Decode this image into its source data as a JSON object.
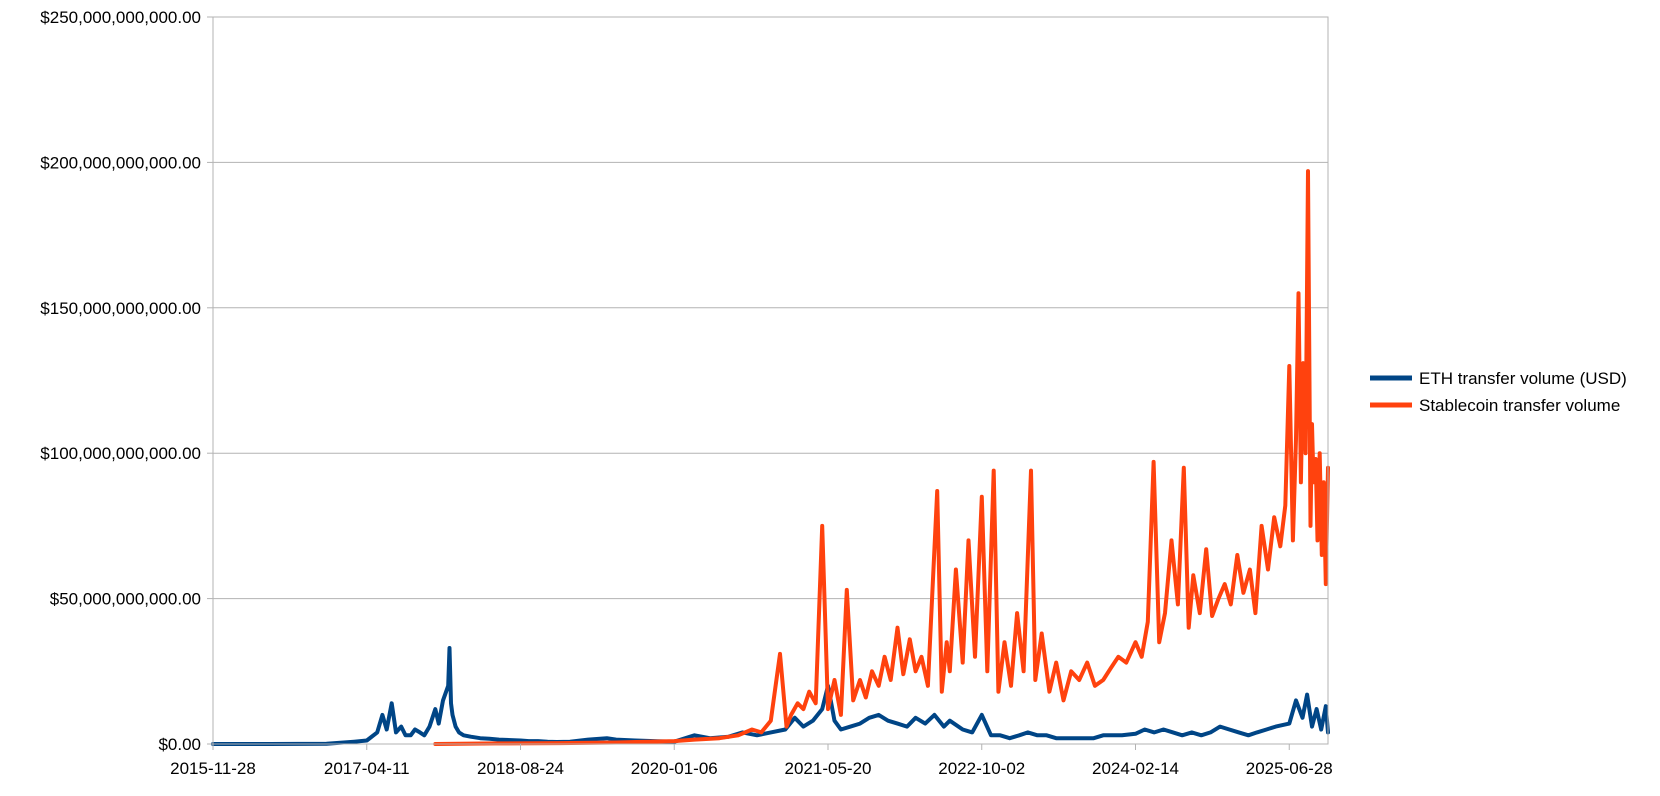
{
  "chart_data": {
    "type": "line",
    "title": "",
    "xlabel": "",
    "ylabel": "",
    "x_start": "2015-11-28",
    "x_end": "2025-11-01",
    "x_ticks": [
      "2015-11-28",
      "2017-04-11",
      "2018-08-24",
      "2020-01-06",
      "2021-05-20",
      "2022-10-02",
      "2024-02-14",
      "2025-06-28"
    ],
    "ylim": [
      0,
      250000000000
    ],
    "y_ticks": [
      {
        "value": 0,
        "label": "$0.00"
      },
      {
        "value": 50000000000,
        "label": "$50,000,000,000.00"
      },
      {
        "value": 100000000000,
        "label": "$100,000,000,000.00"
      },
      {
        "value": 150000000000,
        "label": "$150,000,000,000.00"
      },
      {
        "value": 200000000000,
        "label": "$200,000,000,000.00"
      },
      {
        "value": 250000000000,
        "label": "$250,000,000,000.00"
      }
    ],
    "grid": true,
    "legend_position": "right",
    "series": [
      {
        "name": "ETH transfer volume (USD)",
        "color": "#004586",
        "x": [
          "2015-11-28",
          "2016-06-01",
          "2016-12-01",
          "2017-03-01",
          "2017-04-11",
          "2017-05-15",
          "2017-06-01",
          "2017-06-15",
          "2017-07-01",
          "2017-07-15",
          "2017-08-01",
          "2017-08-15",
          "2017-09-01",
          "2017-09-15",
          "2017-10-01",
          "2017-10-15",
          "2017-11-01",
          "2017-11-20",
          "2017-12-01",
          "2017-12-15",
          "2018-01-01",
          "2018-01-05",
          "2018-01-10",
          "2018-01-15",
          "2018-01-25",
          "2018-02-05",
          "2018-02-20",
          "2018-03-15",
          "2018-04-15",
          "2018-05-15",
          "2018-06-15",
          "2018-08-24",
          "2018-09-20",
          "2018-10-20",
          "2018-11-20",
          "2018-12-20",
          "2019-02-01",
          "2019-04-01",
          "2019-06-01",
          "2019-07-01",
          "2019-09-01",
          "2019-11-01",
          "2020-01-06",
          "2020-03-12",
          "2020-05-01",
          "2020-07-01",
          "2020-08-15",
          "2020-10-01",
          "2020-11-15",
          "2021-01-01",
          "2021-02-01",
          "2021-03-01",
          "2021-04-01",
          "2021-05-01",
          "2021-05-20",
          "2021-06-10",
          "2021-07-01",
          "2021-08-01",
          "2021-09-01",
          "2021-10-01",
          "2021-11-01",
          "2021-12-01",
          "2022-01-01",
          "2022-02-01",
          "2022-03-01",
          "2022-04-01",
          "2022-05-01",
          "2022-06-01",
          "2022-06-20",
          "2022-08-01",
          "2022-09-01",
          "2022-10-02",
          "2022-11-01",
          "2022-12-01",
          "2023-01-01",
          "2023-02-01",
          "2023-03-01",
          "2023-04-01",
          "2023-05-01",
          "2023-06-01",
          "2023-07-01",
          "2023-08-01",
          "2023-09-01",
          "2023-10-01",
          "2023-11-01",
          "2023-12-01",
          "2024-01-01",
          "2024-02-14",
          "2024-03-15",
          "2024-04-15",
          "2024-05-15",
          "2024-06-15",
          "2024-07-15",
          "2024-08-15",
          "2024-09-15",
          "2024-10-15",
          "2024-11-15",
          "2024-12-15",
          "2025-01-15",
          "2025-02-15",
          "2025-03-15",
          "2025-04-15",
          "2025-05-15",
          "2025-06-28",
          "2025-07-20",
          "2025-08-10",
          "2025-08-25",
          "2025-09-10",
          "2025-09-25",
          "2025-10-10",
          "2025-10-25",
          "2025-11-01"
        ],
        "y": [
          0,
          0,
          100000000.0,
          800000000.0,
          1200000000.0,
          4000000000.0,
          10000000000.0,
          5000000000.0,
          14000000000.0,
          4000000000.0,
          6000000000.0,
          3000000000.0,
          3000000000.0,
          5000000000.0,
          4000000000.0,
          3000000000.0,
          6000000000.0,
          12000000000.0,
          7000000000.0,
          15000000000.0,
          20000000000.0,
          33000000000.0,
          14000000000.0,
          10000000000.0,
          6000000000.0,
          4000000000.0,
          3000000000.0,
          2500000000.0,
          2000000000.0,
          1800000000.0,
          1500000000.0,
          1200000000.0,
          1000000000.0,
          1000000000.0,
          800000000.0,
          700000000.0,
          800000000.0,
          1500000000.0,
          2000000000.0,
          1500000000.0,
          1200000000.0,
          1000000000.0,
          800000000.0,
          3000000000.0,
          2000000000.0,
          2500000000.0,
          4000000000.0,
          3000000000.0,
          4000000000.0,
          5000000000.0,
          9000000000.0,
          6000000000.0,
          8000000000.0,
          12000000000.0,
          20000000000.0,
          8000000000.0,
          5000000000.0,
          6000000000.0,
          7000000000.0,
          9000000000.0,
          10000000000.0,
          8000000000.0,
          7000000000.0,
          6000000000.0,
          9000000000.0,
          7000000000.0,
          10000000000.0,
          6000000000.0,
          8000000000.0,
          5000000000.0,
          4000000000.0,
          10000000000.0,
          3000000000.0,
          3000000000.0,
          2000000000.0,
          3000000000.0,
          4000000000.0,
          3000000000.0,
          3000000000.0,
          2000000000.0,
          2000000000.0,
          2000000000.0,
          2000000000.0,
          2000000000.0,
          3000000000.0,
          3000000000.0,
          3000000000.0,
          3500000000.0,
          5000000000.0,
          4000000000.0,
          5000000000.0,
          4000000000.0,
          3000000000.0,
          4000000000.0,
          3000000000.0,
          4000000000.0,
          6000000000.0,
          5000000000.0,
          4000000000.0,
          3000000000.0,
          4000000000.0,
          5000000000.0,
          6000000000.0,
          7000000000.0,
          15000000000.0,
          9000000000.0,
          17000000000.0,
          6000000000.0,
          12000000000.0,
          5000000000.0,
          13000000000.0,
          4000000000.0
        ]
      },
      {
        "name": "Stablecoin transfer volume",
        "color": "#ff420e",
        "x": [
          "2017-11-20",
          "2018-06-01",
          "2019-01-01",
          "2019-07-01",
          "2020-01-06",
          "2020-03-12",
          "2020-06-01",
          "2020-08-01",
          "2020-09-15",
          "2020-10-15",
          "2020-11-15",
          "2020-12-15",
          "2021-01-05",
          "2021-01-20",
          "2021-02-10",
          "2021-03-01",
          "2021-03-20",
          "2021-04-10",
          "2021-05-01",
          "2021-05-20",
          "2021-06-10",
          "2021-07-01",
          "2021-07-20",
          "2021-08-10",
          "2021-09-01",
          "2021-09-20",
          "2021-10-10",
          "2021-11-01",
          "2021-11-20",
          "2021-12-10",
          "2022-01-01",
          "2022-01-20",
          "2022-02-10",
          "2022-03-01",
          "2022-03-20",
          "2022-04-10",
          "2022-05-10",
          "2022-05-25",
          "2022-06-10",
          "2022-06-20",
          "2022-07-10",
          "2022-08-01",
          "2022-08-20",
          "2022-09-10",
          "2022-10-02",
          "2022-10-20",
          "2022-11-10",
          "2022-11-25",
          "2022-12-15",
          "2023-01-05",
          "2023-01-25",
          "2023-02-15",
          "2023-03-11",
          "2023-03-25",
          "2023-04-15",
          "2023-05-10",
          "2023-06-01",
          "2023-06-25",
          "2023-07-20",
          "2023-08-15",
          "2023-09-10",
          "2023-10-05",
          "2023-11-01",
          "2023-11-25",
          "2023-12-20",
          "2024-01-15",
          "2024-02-14",
          "2024-03-05",
          "2024-03-25",
          "2024-04-13",
          "2024-05-01",
          "2024-05-20",
          "2024-06-10",
          "2024-07-01",
          "2024-07-20",
          "2024-08-05",
          "2024-08-20",
          "2024-09-10",
          "2024-10-01",
          "2024-10-20",
          "2024-11-10",
          "2024-11-30",
          "2024-12-20",
          "2025-01-10",
          "2025-01-30",
          "2025-02-20",
          "2025-03-10",
          "2025-03-30",
          "2025-04-20",
          "2025-05-10",
          "2025-05-30",
          "2025-06-15",
          "2025-06-28",
          "2025-07-10",
          "2025-07-20",
          "2025-07-28",
          "2025-08-05",
          "2025-08-12",
          "2025-08-20",
          "2025-08-28",
          "2025-09-05",
          "2025-09-10",
          "2025-09-15",
          "2025-09-22",
          "2025-09-28",
          "2025-10-05",
          "2025-10-12",
          "2025-10-18",
          "2025-10-25",
          "2025-11-01"
        ],
        "y": [
          0,
          200000000.0,
          300000000.0,
          500000000.0,
          1000000000.0,
          1500000000.0,
          2000000000.0,
          3000000000.0,
          5000000000.0,
          4000000000.0,
          8000000000.0,
          31000000000.0,
          6000000000.0,
          10000000000.0,
          14000000000.0,
          12000000000.0,
          18000000000.0,
          14000000000.0,
          75000000000.0,
          12000000000.0,
          22000000000.0,
          10000000000.0,
          53000000000.0,
          15000000000.0,
          22000000000.0,
          16000000000.0,
          25000000000.0,
          20000000000.0,
          30000000000.0,
          22000000000.0,
          40000000000.0,
          24000000000.0,
          36000000000.0,
          25000000000.0,
          30000000000.0,
          20000000000.0,
          87000000000.0,
          18000000000.0,
          35000000000.0,
          25000000000.0,
          60000000000.0,
          28000000000.0,
          70000000000.0,
          30000000000.0,
          85000000000.0,
          25000000000.0,
          94000000000.0,
          18000000000.0,
          35000000000.0,
          20000000000.0,
          45000000000.0,
          25000000000.0,
          94000000000.0,
          22000000000.0,
          38000000000.0,
          18000000000.0,
          28000000000.0,
          15000000000.0,
          25000000000.0,
          22000000000.0,
          28000000000.0,
          20000000000.0,
          22000000000.0,
          26000000000.0,
          30000000000.0,
          28000000000.0,
          35000000000.0,
          30000000000.0,
          42000000000.0,
          97000000000.0,
          35000000000.0,
          45000000000.0,
          70000000000.0,
          48000000000.0,
          95000000000.0,
          40000000000.0,
          58000000000.0,
          45000000000.0,
          67000000000.0,
          44000000000.0,
          50000000000.0,
          55000000000.0,
          48000000000.0,
          65000000000.0,
          52000000000.0,
          60000000000.0,
          45000000000.0,
          75000000000.0,
          60000000000.0,
          78000000000.0,
          68000000000.0,
          82000000000.0,
          130000000000.0,
          70000000000.0,
          105000000000.0,
          155000000000.0,
          90000000000.0,
          131000000000.0,
          100000000000.0,
          197000000000.0,
          75000000000.0,
          110000000000.0,
          90000000000.0,
          98000000000.0,
          70000000000.0,
          100000000000.0,
          65000000000.0,
          90000000000.0,
          55000000000.0,
          95000000000.0
        ]
      }
    ]
  }
}
